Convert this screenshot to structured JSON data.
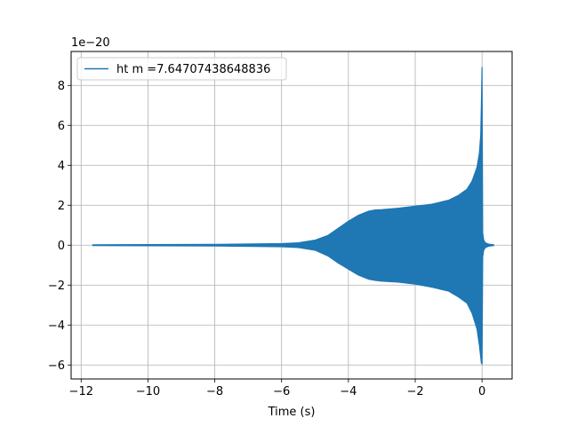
{
  "chart_data": {
    "type": "line",
    "title": "",
    "xlabel": "Time (s)",
    "ylabel": "",
    "y_offset_label": "1e−20",
    "xlim": [
      -12.3,
      0.9
    ],
    "ylim": [
      -6.7,
      9.7
    ],
    "x_ticks": [
      -12,
      -10,
      -8,
      -6,
      -4,
      -2,
      0
    ],
    "x_tick_labels": [
      "−12",
      "−10",
      "−8",
      "−6",
      "−4",
      "−2",
      "0"
    ],
    "y_ticks": [
      -6,
      -4,
      -2,
      0,
      2,
      4,
      6,
      8
    ],
    "y_tick_labels": [
      "−6",
      "−4",
      "−2",
      "0",
      "2",
      "4",
      "6",
      "8"
    ],
    "grid": true,
    "legend_position": "upper-left",
    "series": [
      {
        "name": "ht m =7.64707438648836",
        "color": "#1f77b4",
        "x_range": [
          -11.65,
          0.35
        ],
        "envelope": {
          "x": [
            -11.65,
            -10.0,
            -8.0,
            -6.0,
            -5.5,
            -5.0,
            -4.6,
            -4.3,
            -4.0,
            -3.7,
            -3.4,
            -3.2,
            -3.0,
            -2.5,
            -2.0,
            -1.5,
            -1.0,
            -0.7,
            -0.45,
            -0.3,
            -0.15,
            -0.08,
            -0.04,
            -0.02,
            0.0,
            0.02,
            0.05,
            0.1,
            0.2,
            0.35
          ],
          "upper": [
            0.02,
            0.03,
            0.04,
            0.08,
            0.12,
            0.25,
            0.5,
            0.85,
            1.2,
            1.5,
            1.7,
            1.76,
            1.78,
            1.85,
            1.95,
            2.05,
            2.25,
            2.5,
            2.8,
            3.2,
            3.9,
            4.6,
            5.5,
            7.0,
            8.9,
            0.6,
            0.25,
            0.12,
            0.05,
            0.02
          ],
          "lower": [
            -0.02,
            -0.03,
            -0.04,
            -0.08,
            -0.12,
            -0.25,
            -0.55,
            -0.9,
            -1.2,
            -1.5,
            -1.7,
            -1.76,
            -1.8,
            -1.85,
            -1.95,
            -2.1,
            -2.3,
            -2.6,
            -2.9,
            -3.4,
            -4.2,
            -5.0,
            -5.6,
            -5.9,
            -5.95,
            -0.6,
            -0.25,
            -0.12,
            -0.05,
            -0.02
          ]
        }
      }
    ]
  }
}
